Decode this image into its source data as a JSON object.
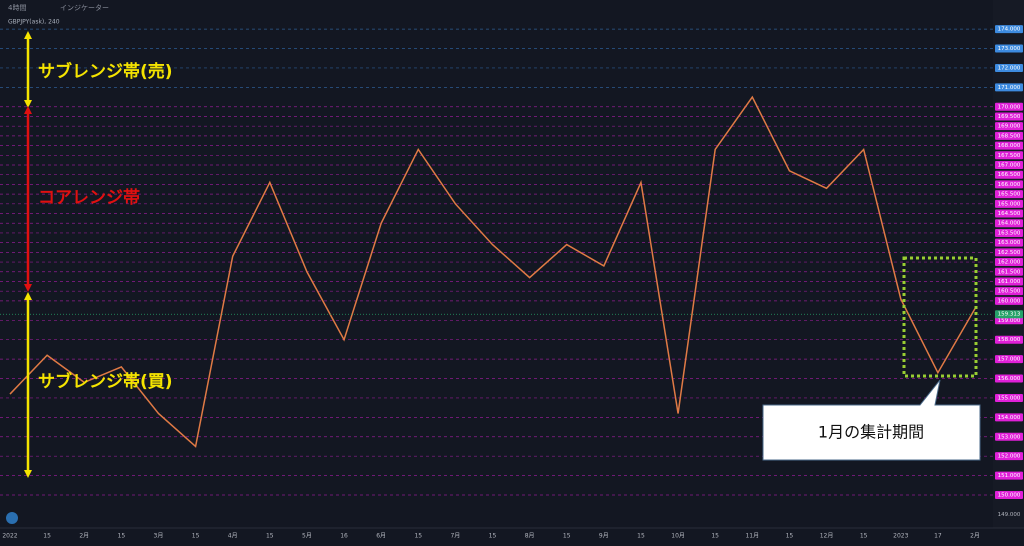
{
  "chart_data": {
    "type": "line",
    "toolbar": {
      "interval": "4時間",
      "indicators": "インジケーター"
    },
    "symbol": "GBPJPY(ask), 240",
    "categories": [
      "2022",
      "15",
      "2月",
      "15",
      "3月",
      "15",
      "4月",
      "15",
      "5月",
      "16",
      "6月",
      "15",
      "7月",
      "15",
      "8月",
      "15",
      "9月",
      "15",
      "10月",
      "15",
      "11月",
      "15",
      "12月",
      "15",
      "2023",
      "17",
      "2月"
    ],
    "values": [
      155.2,
      157.2,
      155.8,
      156.6,
      154.2,
      152.5,
      162.3,
      166.1,
      161.5,
      158,
      164,
      167.8,
      165,
      162.9,
      161.2,
      162.9,
      161.8,
      166.1,
      154.2,
      167.8,
      170.5,
      166.7,
      165.8,
      167.8,
      160.1,
      156.3,
      159.6
    ],
    "color": "#e07a45",
    "last_price": 159.313,
    "last_price_color": "#26a269",
    "ylim": [
      148.3,
      175.5
    ],
    "yticks": [
      {
        "value": 174,
        "label": "174.000"
      },
      {
        "value": 173,
        "label": "173.000"
      },
      {
        "value": 172,
        "label": "172.000"
      },
      {
        "value": 171,
        "label": "171.000"
      },
      {
        "value": 170,
        "label": "170.000"
      },
      {
        "value": 169.5,
        "label": "169.500"
      },
      {
        "value": 169,
        "label": "169.000"
      },
      {
        "value": 168.5,
        "label": "168.500"
      },
      {
        "value": 168,
        "label": "168.000"
      },
      {
        "value": 167.5,
        "label": "167.500"
      },
      {
        "value": 167,
        "label": "167.000"
      },
      {
        "value": 166.5,
        "label": "166.500"
      },
      {
        "value": 166,
        "label": "166.000"
      },
      {
        "value": 165.5,
        "label": "165.500"
      },
      {
        "value": 165,
        "label": "165.000"
      },
      {
        "value": 164.5,
        "label": "164.500"
      },
      {
        "value": 164,
        "label": "164.000"
      },
      {
        "value": 163.5,
        "label": "163.500"
      },
      {
        "value": 163,
        "label": "163.000"
      },
      {
        "value": 162.5,
        "label": "162.500"
      },
      {
        "value": 162,
        "label": "162.000"
      },
      {
        "value": 161.5,
        "label": "161.500"
      },
      {
        "value": 161,
        "label": "161.000"
      },
      {
        "value": 160.5,
        "label": "160.500"
      },
      {
        "value": 160,
        "label": "160.000"
      },
      {
        "value": 159,
        "label": "159.000"
      },
      {
        "value": 158,
        "label": "158.000"
      },
      {
        "value": 157,
        "label": "157.000"
      },
      {
        "value": 156,
        "label": "156.000"
      },
      {
        "value": 155,
        "label": "155.000"
      },
      {
        "value": 154,
        "label": "154.000"
      },
      {
        "value": 153,
        "label": "153.000"
      },
      {
        "value": 152,
        "label": "152.000"
      },
      {
        "value": 151,
        "label": "151.000"
      },
      {
        "value": 150,
        "label": "150.000"
      },
      {
        "value": 149,
        "label": "149.000"
      }
    ],
    "ytick_colors": [
      "#3d8be0",
      "#3d8be0",
      "#3d8be0",
      "#3d8be0",
      "#e020d8",
      "#e020d8",
      "#e020d8",
      "#e020d8",
      "#e020d8",
      "#e020d8",
      "#e020d8",
      "#e020d8",
      "#e020d8",
      "#e020d8",
      "#e020d8",
      "#e020d8",
      "#e020d8",
      "#e020d8",
      "#e020d8",
      "#e020d8",
      "#e020d8",
      "#e020d8",
      "#e020d8",
      "#e020d8",
      "#e020d8",
      "#e020d8",
      "#e020d8",
      "#e020d8",
      "#e020d8",
      "#e020d8",
      "#e020d8",
      "#e020d8",
      "#e020d8",
      "#e020d8",
      "#e020d8",
      null
    ],
    "grid": true,
    "annotations": {
      "sub_sell": "サブレンジ帯(売)",
      "core": "コアレンジ帯",
      "sub_buy": "サブレンジ帯(買)",
      "callout": "1月の集計期間"
    }
  }
}
